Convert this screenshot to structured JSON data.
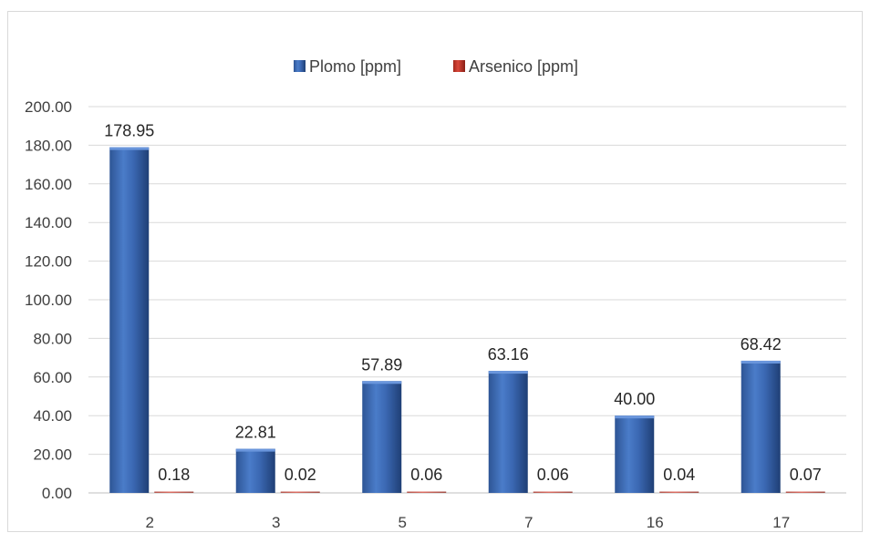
{
  "chart_data": {
    "type": "bar",
    "categories": [
      "2",
      "3",
      "5",
      "7",
      "16",
      "17"
    ],
    "series": [
      {
        "name": "Plomo [ppm]",
        "values": [
          178.95,
          22.81,
          57.89,
          63.16,
          40.0,
          68.42
        ],
        "labels": [
          "178.95",
          "22.81",
          "57.89",
          "63.16",
          "40.00",
          "68.42"
        ],
        "color": "#4472c4"
      },
      {
        "name": "Arsenico [ppm]",
        "values": [
          0.18,
          0.02,
          0.06,
          0.06,
          0.04,
          0.07
        ],
        "labels": [
          "0.18",
          "0.02",
          "0.06",
          "0.06",
          "0.04",
          "0.07"
        ],
        "color": "#c0392b"
      }
    ],
    "yticks": [
      "0.00",
      "20.00",
      "40.00",
      "60.00",
      "80.00",
      "100.00",
      "120.00",
      "140.00",
      "160.00",
      "180.00",
      "200.00"
    ],
    "ylim": [
      0,
      200
    ],
    "grid": true,
    "legend": "top-center"
  }
}
